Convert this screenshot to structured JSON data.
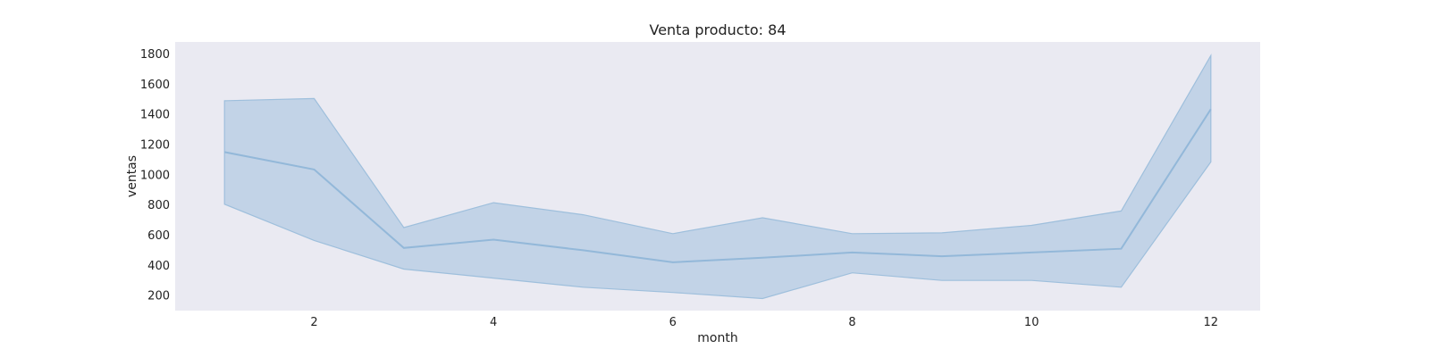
{
  "chart_data": {
    "type": "area",
    "title": "Venta producto: 84",
    "xlabel": "month",
    "ylabel": "ventas",
    "xlim": [
      0.45,
      12.55
    ],
    "ylim": [
      100,
      1880
    ],
    "xticks": [
      2,
      4,
      6,
      8,
      10,
      12
    ],
    "yticks": [
      200,
      400,
      600,
      800,
      1000,
      1200,
      1400,
      1600,
      1800
    ],
    "grid": false,
    "series": [
      {
        "x": [
          1,
          2,
          3,
          4,
          5,
          6,
          7,
          8,
          9,
          10,
          11,
          12
        ],
        "y": [
          1150,
          1035,
          515,
          570,
          500,
          420,
          450,
          485,
          460,
          485,
          510,
          1435
        ],
        "lower": [
          805,
          565,
          375,
          315,
          255,
          220,
          180,
          350,
          300,
          300,
          255,
          1085
        ],
        "upper": [
          1490,
          1505,
          650,
          815,
          735,
          610,
          715,
          610,
          615,
          665,
          760,
          1790
        ]
      }
    ],
    "colors": {
      "plot_background": "#eaeaf2",
      "band_fill": "#a6c3e0",
      "band_stroke": "#9ebfdc",
      "line": "#93b8d9"
    }
  }
}
